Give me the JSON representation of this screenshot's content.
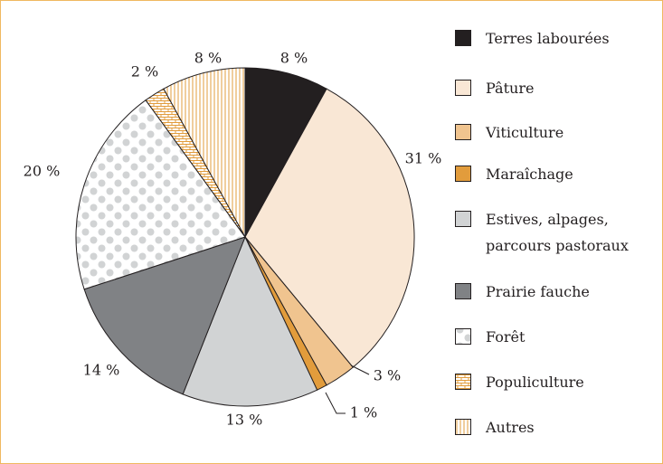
{
  "chart_data": {
    "type": "pie",
    "categories": [
      "Terres labourées",
      "Pâture",
      "Viticulture",
      "Maraîchage",
      "Estives, alpages, parcours pastoraux",
      "Prairie fauche",
      "Forêt",
      "Populiculture",
      "Autres"
    ],
    "values": [
      8,
      31,
      3,
      1,
      13,
      14,
      20,
      2,
      8
    ],
    "value_labels": [
      "8 %",
      "31 %",
      "3 %",
      "1 %",
      "13 %",
      "14 %",
      "20 %",
      "2 %",
      "8 %"
    ],
    "colors": [
      "#231f20",
      "#f9e7d5",
      "#f0c48f",
      "#e29c3c",
      "#d1d3d4",
      "#808285",
      "#d1d3d4",
      "#e29c3c",
      "#e29c3c"
    ],
    "patterns": [
      null,
      null,
      null,
      null,
      null,
      null,
      "dots",
      "bricks",
      "stripes"
    ]
  }
}
